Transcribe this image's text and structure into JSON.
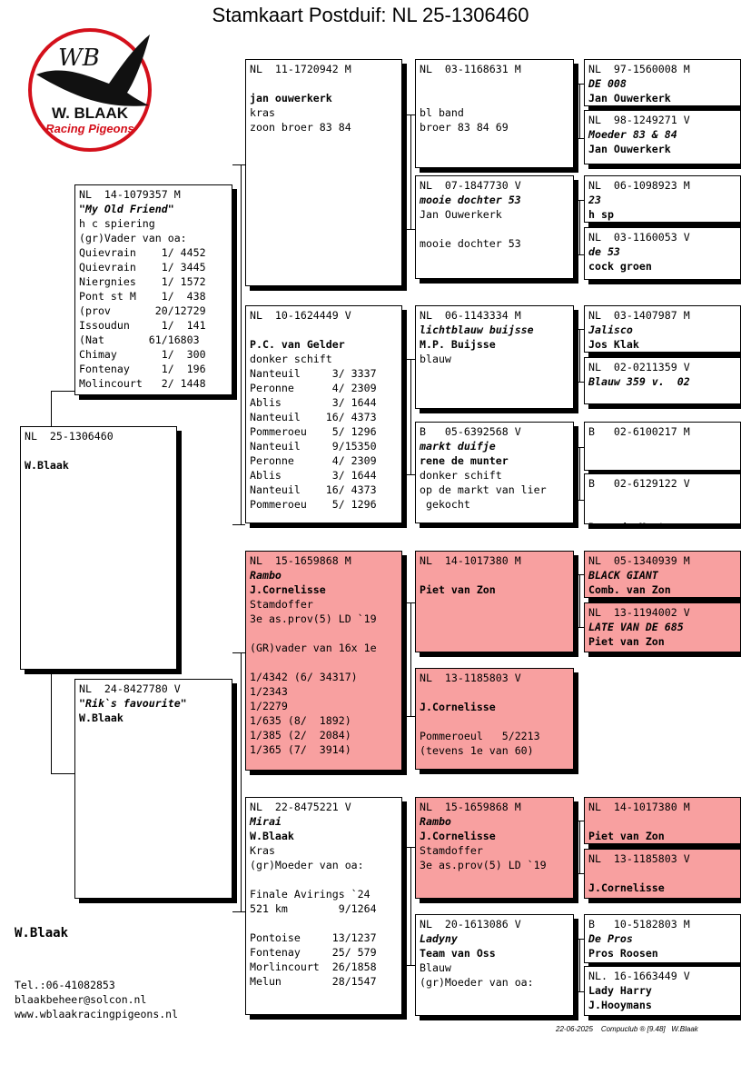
{
  "title": "Stamkaart Postduif: NL  25-1306460",
  "logo": {
    "monogram": "WB",
    "name": "W. BLAAK",
    "tagline": "Racing Pigeons",
    "red": "#d4101b"
  },
  "cards": [
    {
      "id": "subject",
      "red": false,
      "lines": [
        "NL  25-1306460",
        "",
        "W.Blaak"
      ]
    },
    {
      "id": "father",
      "red": false,
      "lines": [
        "NL  14-1079357 M",
        "\"My Old Friend\"",
        "h c spiering",
        "(gr)Vader van oa:",
        "Quievrain    1/ 4452",
        "Quievrain    1/ 3445",
        "Niergnies    1/ 1572",
        "Pont st M    1/  438",
        "(prov       20/12729",
        "Issoudun     1/  141",
        "(Nat       61/16803",
        "Chimay       1/  300",
        "Fontenay     1/  196",
        "Molincourt   2/ 1448"
      ]
    },
    {
      "id": "mother",
      "red": false,
      "lines": [
        "NL  24-8427780 V",
        "\"Rik`s favourite\"",
        "W.Blaak"
      ]
    },
    {
      "id": "ff",
      "red": false,
      "lines": [
        "NL  11-1720942 M",
        "",
        "jan ouwerkerk",
        "kras",
        "zoon broer 83 84"
      ]
    },
    {
      "id": "fm",
      "red": false,
      "lines": [
        "NL  10-1624449 V",
        "",
        "P.C. van Gelder",
        "donker schift",
        "Nanteuil     3/ 3337",
        "Peronne      4/ 2309",
        "Ablis        3/ 1644",
        "Nanteuil    16/ 4373",
        "Pommeroeu    5/ 1296",
        "Nanteuil     9/15350",
        "Peronne      4/ 2309",
        "Ablis        3/ 1644",
        "Nanteuil    16/ 4373",
        "Pommeroeu    5/ 1296"
      ]
    },
    {
      "id": "mf",
      "red": true,
      "lines": [
        "NL  15-1659868 M",
        "Rambo",
        "J.Cornelisse",
        "Stamdoffer",
        "3e as.prov(5) LD `19",
        "",
        "(GR)vader van 16x 1e",
        "",
        "1/4342 (6/ 34317)",
        "1/2343",
        "1/2279",
        "1/635 (8/  1892)",
        "1/385 (2/  2084)",
        "1/365 (7/  3914)"
      ]
    },
    {
      "id": "mm",
      "red": false,
      "lines": [
        "NL  22-8475221 V",
        "Mirai",
        "W.Blaak",
        "Kras",
        "(gr)Moeder van oa:",
        "",
        "Finale Avirings `24",
        "521 km        9/1264",
        "",
        "Pontoise     13/1237",
        "Fontenay     25/ 579",
        "Morlincourt  26/1858",
        "Melun        28/1547"
      ]
    },
    {
      "id": "fff",
      "red": false,
      "lines": [
        "NL  03-1168631 M",
        "",
        "",
        "bl band",
        "broer 83 84 69"
      ]
    },
    {
      "id": "ffm",
      "red": false,
      "lines": [
        "NL  07-1847730 V",
        "mooie dochter 53",
        "Jan Ouwerkerk",
        "",
        "mooie dochter 53"
      ]
    },
    {
      "id": "fmf",
      "red": false,
      "lines": [
        "NL  06-1143334 M",
        "lichtblauw buijsse",
        "M.P. Buijsse",
        "blauw"
      ]
    },
    {
      "id": "fmm",
      "red": false,
      "lines": [
        "B   05-6392568 V",
        "markt duifje",
        "rene de munter",
        "donker schift",
        "op de markt van lier",
        " gekocht"
      ]
    },
    {
      "id": "mff",
      "red": true,
      "lines": [
        "NL  14-1017380 M",
        "",
        "Piet van Zon"
      ]
    },
    {
      "id": "mfm",
      "red": true,
      "lines": [
        "NL  13-1185803 V",
        "",
        "J.Cornelisse",
        "",
        "Pommeroeul   5/2213",
        "(tevens 1e van 60)"
      ]
    },
    {
      "id": "mmf",
      "red": true,
      "lines": [
        "NL  15-1659868 M",
        "Rambo",
        "J.Cornelisse",
        "Stamdoffer",
        "3e as.prov(5) LD `19"
      ]
    },
    {
      "id": "mmm",
      "red": false,
      "lines": [
        "NL  20-1613086 V",
        "Ladyny",
        "Team van Oss",
        "Blauw",
        "(gr)Moeder van oa:"
      ]
    },
    {
      "id": "g1",
      "red": false,
      "lines": [
        "NL  97-1560008 M",
        "DE 008",
        "Jan Ouwerkerk"
      ]
    },
    {
      "id": "g2",
      "red": false,
      "lines": [
        "NL  98-1249271 V",
        "Moeder 83 & 84",
        "Jan Ouwerkerk"
      ]
    },
    {
      "id": "g3",
      "red": false,
      "lines": [
        "NL  06-1098923 M",
        "23",
        "h sp"
      ]
    },
    {
      "id": "g4",
      "red": false,
      "lines": [
        "NL  03-1160053 V",
        "de 53",
        "cock groen"
      ]
    },
    {
      "id": "g5",
      "red": false,
      "lines": [
        "NL  03-1407987 M",
        "Jalisco",
        "Jos Klak"
      ]
    },
    {
      "id": "g6",
      "red": false,
      "lines": [
        "NL  02-0211359 V",
        "Blauw 359 v.  02"
      ]
    },
    {
      "id": "g7",
      "red": false,
      "lines": [
        "B   02-6100217 M"
      ]
    },
    {
      "id": "g8",
      "red": false,
      "lines": [
        "B   02-6129122 V",
        "",
        "",
        "Rene de Munter"
      ]
    },
    {
      "id": "g9",
      "red": true,
      "lines": [
        "NL  05-1340939 M",
        "BLACK GIANT",
        "Comb. van Zon"
      ]
    },
    {
      "id": "g10",
      "red": true,
      "lines": [
        "NL  13-1194002 V",
        "LATE VAN DE 685",
        "Piet van Zon"
      ]
    },
    {
      "id": "g13",
      "red": true,
      "lines": [
        "NL  14-1017380 M",
        "",
        "Piet van Zon"
      ]
    },
    {
      "id": "g14",
      "red": true,
      "lines": [
        "NL  13-1185803 V",
        "",
        "J.Cornelisse"
      ]
    },
    {
      "id": "g15",
      "red": false,
      "lines": [
        "B   10-5182803 M",
        "De Pros",
        "Pros Roosen"
      ]
    },
    {
      "id": "g16",
      "red": false,
      "lines": [
        "NL. 16-1663449 V",
        "Lady Harry",
        "J.Hooymans"
      ]
    }
  ],
  "owner": "W.Blaak",
  "contact": [
    "Tel.:06-41082853",
    "blaakbeheer@solcon.nl",
    "www.wblaakracingpigeons.nl"
  ],
  "footer": "22-06-2025    Compuclub ® [9.48]   W.Blaak"
}
